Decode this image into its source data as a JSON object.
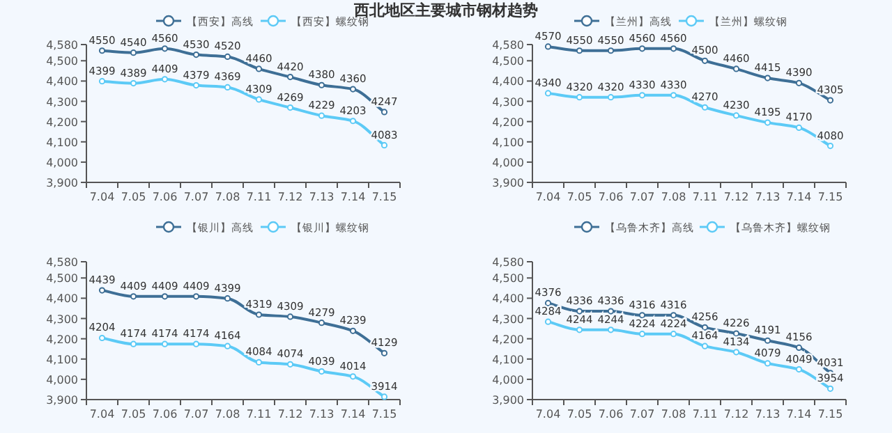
{
  "chart_data": [
    {
      "type": "line",
      "title": "西北地区主要城市钢材趋势",
      "categories": [
        "7.04",
        "7.05",
        "7.06",
        "7.07",
        "7.08",
        "7.11",
        "7.12",
        "7.13",
        "7.14",
        "7.15"
      ],
      "ylim": [
        3900,
        4580
      ],
      "yticks": [
        {
          "value": 3900,
          "label": "3,900"
        },
        {
          "value": 4000,
          "label": "4,000"
        },
        {
          "value": 4100,
          "label": "4,100"
        },
        {
          "value": 4200,
          "label": "4,200"
        },
        {
          "value": 4300,
          "label": "4,300"
        },
        {
          "value": 4400,
          "label": "4,400"
        },
        {
          "value": 4500,
          "label": "4,500"
        },
        {
          "value": 4580,
          "label": "4,580"
        }
      ],
      "marker": "circle",
      "data_labels": true,
      "legend": "top",
      "grid": false,
      "series": [
        {
          "name": "【西安】高线",
          "color": "#3e6f96",
          "values": [
            4550,
            4540,
            4560,
            4530,
            4520,
            4460,
            4420,
            4380,
            4360,
            4247
          ]
        },
        {
          "name": "【西安】螺纹钢",
          "color": "#5ccaf6",
          "values": [
            4399,
            4389,
            4409,
            4379,
            4369,
            4309,
            4269,
            4229,
            4203,
            4083
          ]
        }
      ]
    },
    {
      "type": "line",
      "categories": [
        "7.04",
        "7.05",
        "7.06",
        "7.07",
        "7.08",
        "7.11",
        "7.12",
        "7.13",
        "7.14",
        "7.15"
      ],
      "ylim": [
        3900,
        4580
      ],
      "yticks": [
        {
          "value": 3900,
          "label": "3,900"
        },
        {
          "value": 4000,
          "label": "4,000"
        },
        {
          "value": 4100,
          "label": "4,100"
        },
        {
          "value": 4200,
          "label": "4,200"
        },
        {
          "value": 4300,
          "label": "4,300"
        },
        {
          "value": 4400,
          "label": "4,400"
        },
        {
          "value": 4500,
          "label": "4,500"
        },
        {
          "value": 4580,
          "label": "4,580"
        }
      ],
      "marker": "circle",
      "data_labels": true,
      "legend": "top",
      "grid": false,
      "series": [
        {
          "name": "【兰州】高线",
          "color": "#3e6f96",
          "values": [
            4570,
            4550,
            4550,
            4560,
            4560,
            4500,
            4460,
            4415,
            4390,
            4305
          ]
        },
        {
          "name": "【兰州】螺纹钢",
          "color": "#5ccaf6",
          "values": [
            4340,
            4320,
            4320,
            4330,
            4330,
            4270,
            4230,
            4195,
            4170,
            4080
          ]
        }
      ]
    },
    {
      "type": "line",
      "categories": [
        "7.04",
        "7.05",
        "7.06",
        "7.07",
        "7.08",
        "7.11",
        "7.12",
        "7.13",
        "7.14",
        "7.15"
      ],
      "ylim": [
        3900,
        4580
      ],
      "yticks": [
        {
          "value": 3900,
          "label": "3,900"
        },
        {
          "value": 4000,
          "label": "4,000"
        },
        {
          "value": 4100,
          "label": "4,100"
        },
        {
          "value": 4200,
          "label": "4,200"
        },
        {
          "value": 4300,
          "label": "4,300"
        },
        {
          "value": 4400,
          "label": "4,400"
        },
        {
          "value": 4500,
          "label": "4,500"
        },
        {
          "value": 4580,
          "label": "4,580"
        }
      ],
      "marker": "circle",
      "data_labels": true,
      "legend": "top",
      "grid": false,
      "series": [
        {
          "name": "【银川】高线",
          "color": "#3e6f96",
          "values": [
            4439,
            4409,
            4409,
            4409,
            4399,
            4319,
            4309,
            4279,
            4239,
            4129
          ]
        },
        {
          "name": "【银川】螺纹钢",
          "color": "#5ccaf6",
          "values": [
            4204,
            4174,
            4174,
            4174,
            4164,
            4084,
            4074,
            4039,
            4014,
            3914
          ]
        }
      ]
    },
    {
      "type": "line",
      "categories": [
        "7.04",
        "7.05",
        "7.06",
        "7.07",
        "7.08",
        "7.11",
        "7.12",
        "7.13",
        "7.14",
        "7.15"
      ],
      "ylim": [
        3900,
        4580
      ],
      "yticks": [
        {
          "value": 3900,
          "label": "3,900"
        },
        {
          "value": 4000,
          "label": "4,000"
        },
        {
          "value": 4100,
          "label": "4,100"
        },
        {
          "value": 4200,
          "label": "4,200"
        },
        {
          "value": 4300,
          "label": "4,300"
        },
        {
          "value": 4400,
          "label": "4,400"
        },
        {
          "value": 4500,
          "label": "4,500"
        },
        {
          "value": 4580,
          "label": "4,580"
        }
      ],
      "marker": "circle",
      "data_labels": true,
      "legend": "top",
      "grid": false,
      "series": [
        {
          "name": "【乌鲁木齐】高线",
          "color": "#3e6f96",
          "values": [
            4376,
            4336,
            4336,
            4316,
            4316,
            4256,
            4226,
            4191,
            4156,
            4031
          ]
        },
        {
          "name": "【乌鲁木齐】螺纹钢",
          "color": "#5ccaf6",
          "values": [
            4284,
            4244,
            4244,
            4224,
            4224,
            4164,
            4134,
            4079,
            4049,
            3954
          ]
        }
      ]
    }
  ]
}
